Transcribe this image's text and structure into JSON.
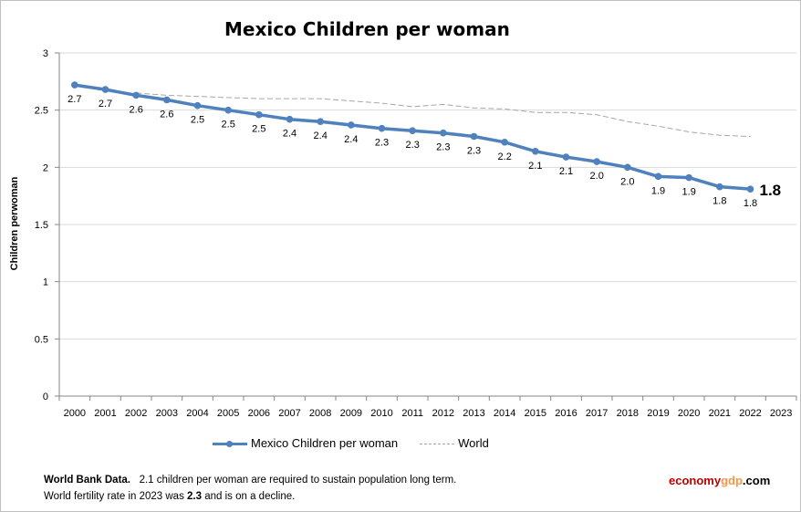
{
  "chart_data": {
    "type": "line",
    "title": "Mexico Children per woman",
    "xlabel": "",
    "ylabel": "Children perwoman",
    "x": [
      "2000",
      "2001",
      "2002",
      "2003",
      "2004",
      "2005",
      "2006",
      "2007",
      "2008",
      "2009",
      "2010",
      "2011",
      "2012",
      "2013",
      "2014",
      "2015",
      "2016",
      "2017",
      "2018",
      "2019",
      "2020",
      "2021",
      "2022",
      "2023"
    ],
    "ylim": [
      0,
      3
    ],
    "yticks": [
      "0",
      "0.5",
      "1",
      "1.5",
      "2",
      "2.5",
      "3"
    ],
    "grid": "horizontal",
    "legend_position": "bottom",
    "series": [
      {
        "name": "Mexico Children per woman",
        "color": "#4f81bd",
        "values": [
          2.72,
          2.68,
          2.63,
          2.59,
          2.54,
          2.5,
          2.46,
          2.42,
          2.4,
          2.37,
          2.34,
          2.32,
          2.3,
          2.27,
          2.22,
          2.14,
          2.09,
          2.05,
          2.0,
          1.92,
          1.91,
          1.83,
          1.81,
          null
        ],
        "labels": [
          "2.7",
          "2.7",
          "2.6",
          "2.6",
          "2.5",
          "2.5",
          "2.5",
          "2.4",
          "2.4",
          "2.4",
          "2.3",
          "2.3",
          "2.3",
          "2.3",
          "2.2",
          "2.1",
          "2.1",
          "2.0",
          "2.0",
          "1.9",
          "1.9",
          "1.8",
          "1.8",
          ""
        ]
      },
      {
        "name": "World",
        "color": "#a6a6a6",
        "values": [
          null,
          null,
          2.65,
          2.63,
          2.62,
          2.61,
          2.6,
          2.6,
          2.6,
          2.58,
          2.56,
          2.53,
          2.55,
          2.52,
          2.51,
          2.48,
          2.48,
          2.46,
          2.4,
          2.36,
          2.31,
          2.28,
          2.27,
          null
        ]
      }
    ],
    "annotations": [
      {
        "text": "1.8",
        "x": "2022"
      }
    ]
  },
  "footer": {
    "note_source": "World Bank Data.",
    "note_line1_rest": "2.1 children per woman  are required to sustain population long term.",
    "note_line2_pre": "World fertility rate in 2023 was ",
    "note_line2_value": "2.3",
    "note_line2_post": " and is on a decline.",
    "brand_part1": "economy",
    "brand_part2": "gdp",
    "brand_part3": ".com",
    "brand_color_main": "#c00000",
    "brand_color_accent": "#f79646",
    "brand_color_tail": "#000000"
  }
}
